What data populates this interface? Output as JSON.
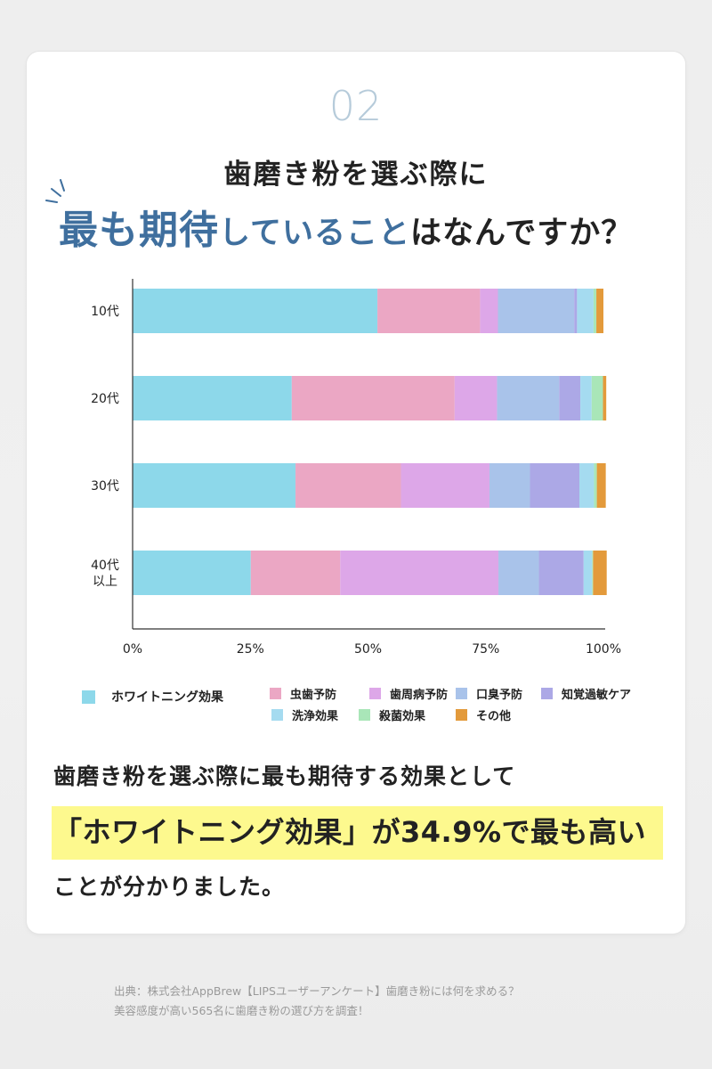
{
  "number": "02",
  "question_line1": "歯磨き粉を選ぶ際に",
  "question_line2": {
    "big": "最も期待",
    "mid": "していること",
    "rest": "はなんですか？"
  },
  "chart_data": {
    "type": "bar",
    "orientation": "horizontal",
    "stacked": true,
    "categories": [
      [
        "10代"
      ],
      [
        "20代"
      ],
      [
        "30代"
      ],
      [
        "40代",
        "以上"
      ]
    ],
    "x_ticks": [
      "0%",
      "25%",
      "50%",
      "75%",
      "100%"
    ],
    "xlim": [
      0,
      100
    ],
    "series": [
      {
        "name": "ホワイトニング効果",
        "color": "#8dd8ea",
        "values": [
          52.0,
          33.8,
          34.6,
          25.1
        ]
      },
      {
        "name": "虫歯予防",
        "color": "#eba7c4",
        "values": [
          21.8,
          34.6,
          22.4,
          19.0
        ]
      },
      {
        "name": "歯周病予防",
        "color": "#dda7e8",
        "values": [
          3.8,
          9.0,
          18.8,
          33.6
        ]
      },
      {
        "name": "口臭予防",
        "color": "#a9c3ea",
        "values": [
          16.2,
          13.2,
          8.6,
          8.6
        ]
      },
      {
        "name": "知覚過敏ケア",
        "color": "#aca8e6",
        "values": [
          0.6,
          4.5,
          10.5,
          9.5
        ]
      },
      {
        "name": "洗浄効果",
        "color": "#a5dbf0",
        "values": [
          3.5,
          2.4,
          3.1,
          1.8
        ]
      },
      {
        "name": "殺菌効果",
        "color": "#a9e6b8",
        "values": [
          0.6,
          2.4,
          0.6,
          0.2
        ]
      },
      {
        "name": "その他",
        "color": "#e39a3b",
        "values": [
          1.5,
          0.7,
          1.9,
          2.9
        ]
      }
    ]
  },
  "conclusion": {
    "line1": "歯磨き粉を選ぶ際に最も期待する効果として",
    "line2": "「ホワイトニング効果」が34.9%で最も高い",
    "line3": "ことが分かりました。"
  },
  "source": {
    "line1": "出典：株式会社AppBrew【LIPSユーザーアンケート】歯磨き粉には何を求める？",
    "line2": "美容感度が高い565名に歯磨き粉の選び方を調査！"
  },
  "colors": {
    "accent": "#3f6f9e",
    "number": "#b6cbda",
    "highlight": "#fdf98e"
  }
}
